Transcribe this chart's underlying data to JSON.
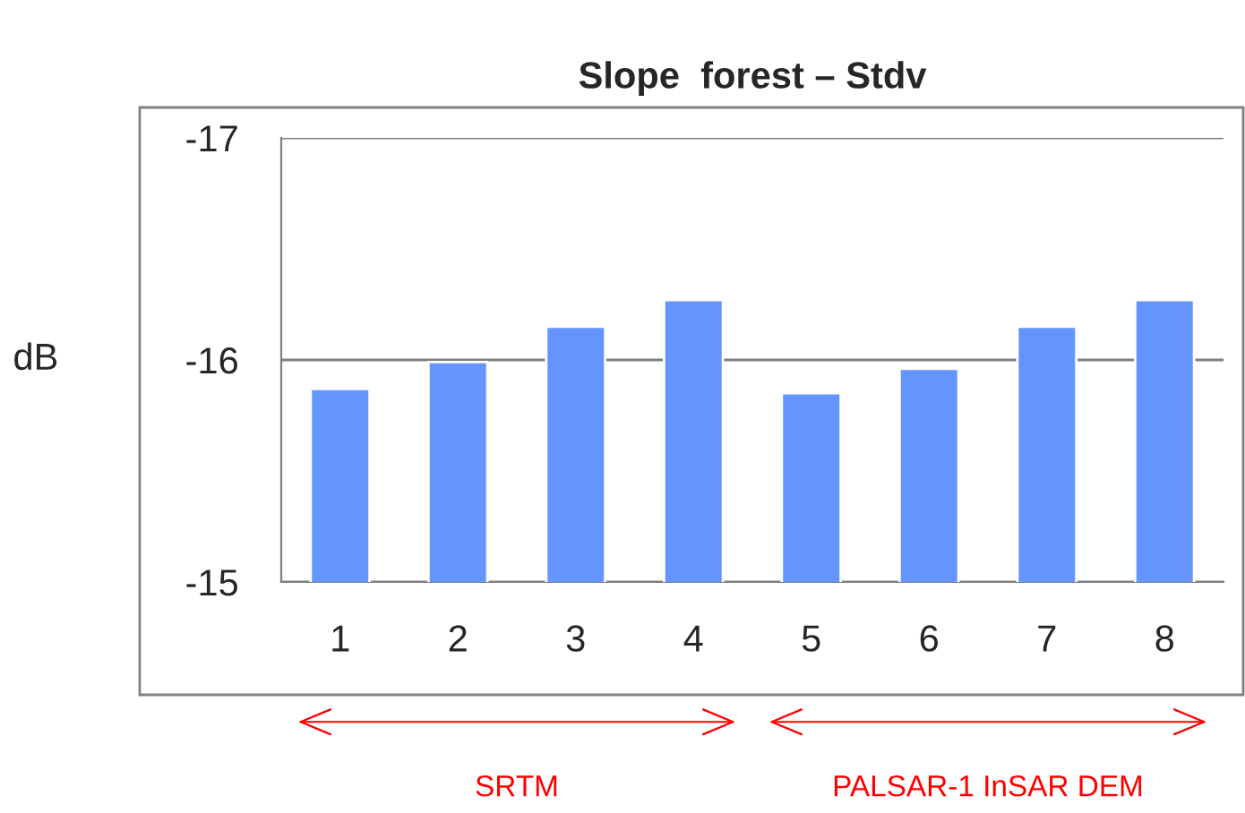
{
  "chart_data": {
    "type": "bar",
    "title": "Slope  forest – Stdv",
    "ylabel": "dB",
    "categories": [
      "1",
      "2",
      "3",
      "4",
      "5",
      "6",
      "7",
      "8"
    ],
    "values": [
      -15.87,
      -15.99,
      -16.15,
      -16.27,
      -15.85,
      -15.96,
      -16.15,
      -16.27
    ],
    "color": "#6495ff",
    "ylim": [
      -15,
      -17
    ],
    "yticks": [
      -15,
      -16,
      -17
    ],
    "grid": "y",
    "annotations": [
      "SRTM",
      "PALSAR-1 InSAR DEM"
    ]
  }
}
